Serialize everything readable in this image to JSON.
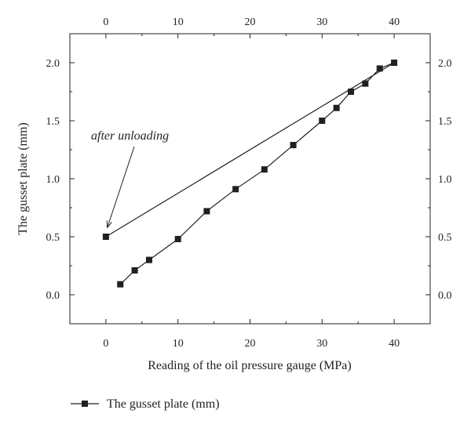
{
  "chart_data": {
    "type": "line",
    "xlabel": "Reading of the oil pressure gauge (MPa)",
    "ylabel": "The gusset plate (mm)",
    "xlim": [
      -5,
      45
    ],
    "ylim": [
      -0.25,
      2.25
    ],
    "x_ticks": [
      0,
      10,
      20,
      30,
      40
    ],
    "y_ticks": [
      0.0,
      0.5,
      1.0,
      1.5,
      2.0
    ],
    "x_tick_labels": [
      "0",
      "10",
      "20",
      "30",
      "40"
    ],
    "y_tick_labels": [
      "0.0",
      "0.5",
      "1.0",
      "1.5",
      "2.0"
    ],
    "top_axis_mirrored": true,
    "right_axis_mirrored": true,
    "grid": false,
    "legend_position": "bottom-left, below plot",
    "series": [
      {
        "name": "The gusset plate (mm)",
        "marker": "square",
        "color": "#231f20",
        "x": [
          2,
          4,
          6,
          10,
          14,
          18,
          22,
          26,
          30,
          32,
          34,
          36,
          38,
          40,
          0
        ],
        "y": [
          0.09,
          0.21,
          0.3,
          0.48,
          0.72,
          0.91,
          1.08,
          1.29,
          1.5,
          1.61,
          1.75,
          1.82,
          1.95,
          2.0,
          0.5
        ]
      }
    ],
    "annotations": [
      {
        "text": "after unloading",
        "points_to": {
          "x": 0.2,
          "y": 0.58
        }
      }
    ]
  }
}
